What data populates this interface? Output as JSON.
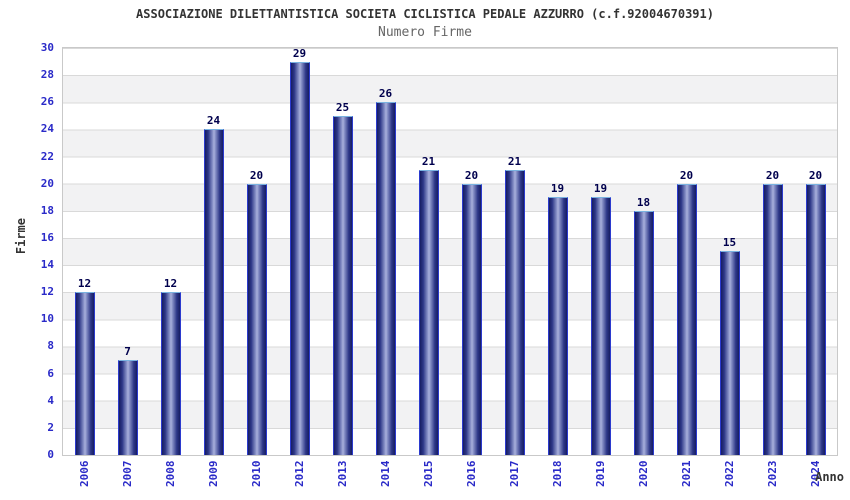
{
  "chart_data": {
    "type": "bar",
    "title": "ASSOCIAZIONE DILETTANTISTICA SOCIETA CICLISTICA PEDALE AZZURRO (c.f.92004670391)",
    "subtitle": "Numero Firme",
    "xlabel": "Anno",
    "ylabel": "Firme",
    "categories": [
      "2006",
      "2007",
      "2008",
      "2009",
      "2010",
      "2012",
      "2013",
      "2014",
      "2015",
      "2016",
      "2017",
      "2018",
      "2019",
      "2020",
      "2021",
      "2022",
      "2023",
      "2024"
    ],
    "values": [
      12,
      7,
      12,
      24,
      20,
      29,
      25,
      26,
      21,
      20,
      21,
      19,
      19,
      18,
      20,
      15,
      20,
      20
    ],
    "ylim": [
      0,
      30
    ],
    "ytick_step": 2,
    "grid": true,
    "legend": "none",
    "colors": {
      "bar_dark": "#171d62",
      "bar_light": "#a9b0dc",
      "bar_side_border": "#2b3ace",
      "bar_top_border": "#79b2e0",
      "tick_label": "#2a2ac8",
      "value_label": "#00004d",
      "title": "#333333",
      "subtitle": "#666666",
      "band": "#f2f2f3",
      "gridline": "#d9d9d9",
      "plot_border": "#c9c9c9",
      "background": "#ffffff"
    }
  }
}
